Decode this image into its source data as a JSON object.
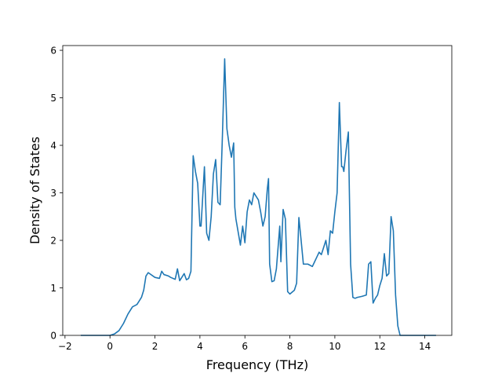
{
  "chart_data": {
    "type": "line",
    "title": "",
    "xlabel": "Frequency (THz)",
    "ylabel": "Density of States",
    "xlim": [
      -2.1,
      15.2
    ],
    "ylim": [
      0,
      6.1
    ],
    "xticks": [
      -2,
      0,
      2,
      4,
      6,
      8,
      10,
      12,
      14
    ],
    "xtick_labels": [
      "−2",
      "0",
      "2",
      "4",
      "6",
      "8",
      "10",
      "12",
      "14"
    ],
    "yticks": [
      0,
      1,
      2,
      3,
      4,
      5,
      6
    ],
    "ytick_labels": [
      "0",
      "1",
      "2",
      "3",
      "4",
      "5",
      "6"
    ],
    "grid": false,
    "legend": "none",
    "series": [
      {
        "color": "#1f77b4",
        "x": [
          -1.3,
          0.0,
          0.2,
          0.4,
          0.6,
          0.8,
          1.0,
          1.2,
          1.4,
          1.5,
          1.6,
          1.7,
          2.0,
          2.2,
          2.3,
          2.4,
          2.6,
          2.7,
          2.9,
          3.0,
          3.1,
          3.3,
          3.4,
          3.5,
          3.6,
          3.7,
          3.8,
          3.9,
          4.0,
          4.05,
          4.2,
          4.3,
          4.4,
          4.5,
          4.6,
          4.7,
          4.8,
          4.9,
          5.0,
          5.1,
          5.2,
          5.3,
          5.4,
          5.5,
          5.55,
          5.6,
          5.8,
          5.9,
          6.0,
          6.1,
          6.2,
          6.3,
          6.4,
          6.6,
          6.7,
          6.8,
          6.9,
          7.0,
          7.05,
          7.1,
          7.2,
          7.3,
          7.4,
          7.55,
          7.6,
          7.7,
          7.8,
          7.9,
          8.0,
          8.2,
          8.3,
          8.4,
          8.5,
          8.6,
          8.8,
          9.0,
          9.1,
          9.2,
          9.3,
          9.4,
          9.5,
          9.6,
          9.7,
          9.8,
          9.9,
          10.0,
          10.1,
          10.2,
          10.3,
          10.35,
          10.4,
          10.5,
          10.6,
          10.7,
          10.8,
          10.9,
          11.0,
          11.2,
          11.4,
          11.5,
          11.6,
          11.7,
          11.8,
          11.9,
          12.0,
          12.1,
          12.2,
          12.3,
          12.4,
          12.5,
          12.6,
          12.7,
          12.8,
          12.9,
          13.0,
          13.1,
          13.2,
          13.5,
          14.5
        ],
        "y": [
          0.0,
          0.0,
          0.03,
          0.1,
          0.25,
          0.45,
          0.6,
          0.65,
          0.8,
          0.95,
          1.25,
          1.32,
          1.22,
          1.2,
          1.35,
          1.28,
          1.25,
          1.22,
          1.18,
          1.4,
          1.15,
          1.3,
          1.17,
          1.2,
          1.35,
          3.78,
          3.45,
          3.2,
          2.3,
          2.3,
          3.55,
          2.15,
          2.0,
          2.5,
          3.4,
          3.7,
          2.8,
          2.75,
          4.2,
          5.82,
          4.35,
          4.0,
          3.75,
          4.05,
          2.7,
          2.45,
          1.9,
          2.3,
          1.95,
          2.6,
          2.85,
          2.75,
          3.0,
          2.85,
          2.6,
          2.3,
          2.5,
          3.1,
          3.3,
          1.5,
          1.13,
          1.15,
          1.4,
          2.3,
          1.55,
          2.65,
          2.45,
          0.92,
          0.87,
          0.95,
          1.1,
          2.48,
          2.0,
          1.5,
          1.5,
          1.45,
          1.55,
          1.65,
          1.75,
          1.7,
          1.85,
          2.0,
          1.7,
          2.2,
          2.15,
          2.6,
          3.0,
          4.9,
          3.55,
          3.55,
          3.45,
          3.9,
          4.28,
          1.5,
          0.8,
          0.78,
          0.8,
          0.82,
          0.85,
          1.5,
          1.55,
          0.68,
          0.78,
          0.85,
          1.05,
          1.2,
          1.72,
          1.25,
          1.3,
          2.5,
          2.2,
          0.85,
          0.2,
          0.0,
          0.0,
          0.0,
          0.0,
          0.0,
          0.0
        ]
      }
    ]
  }
}
